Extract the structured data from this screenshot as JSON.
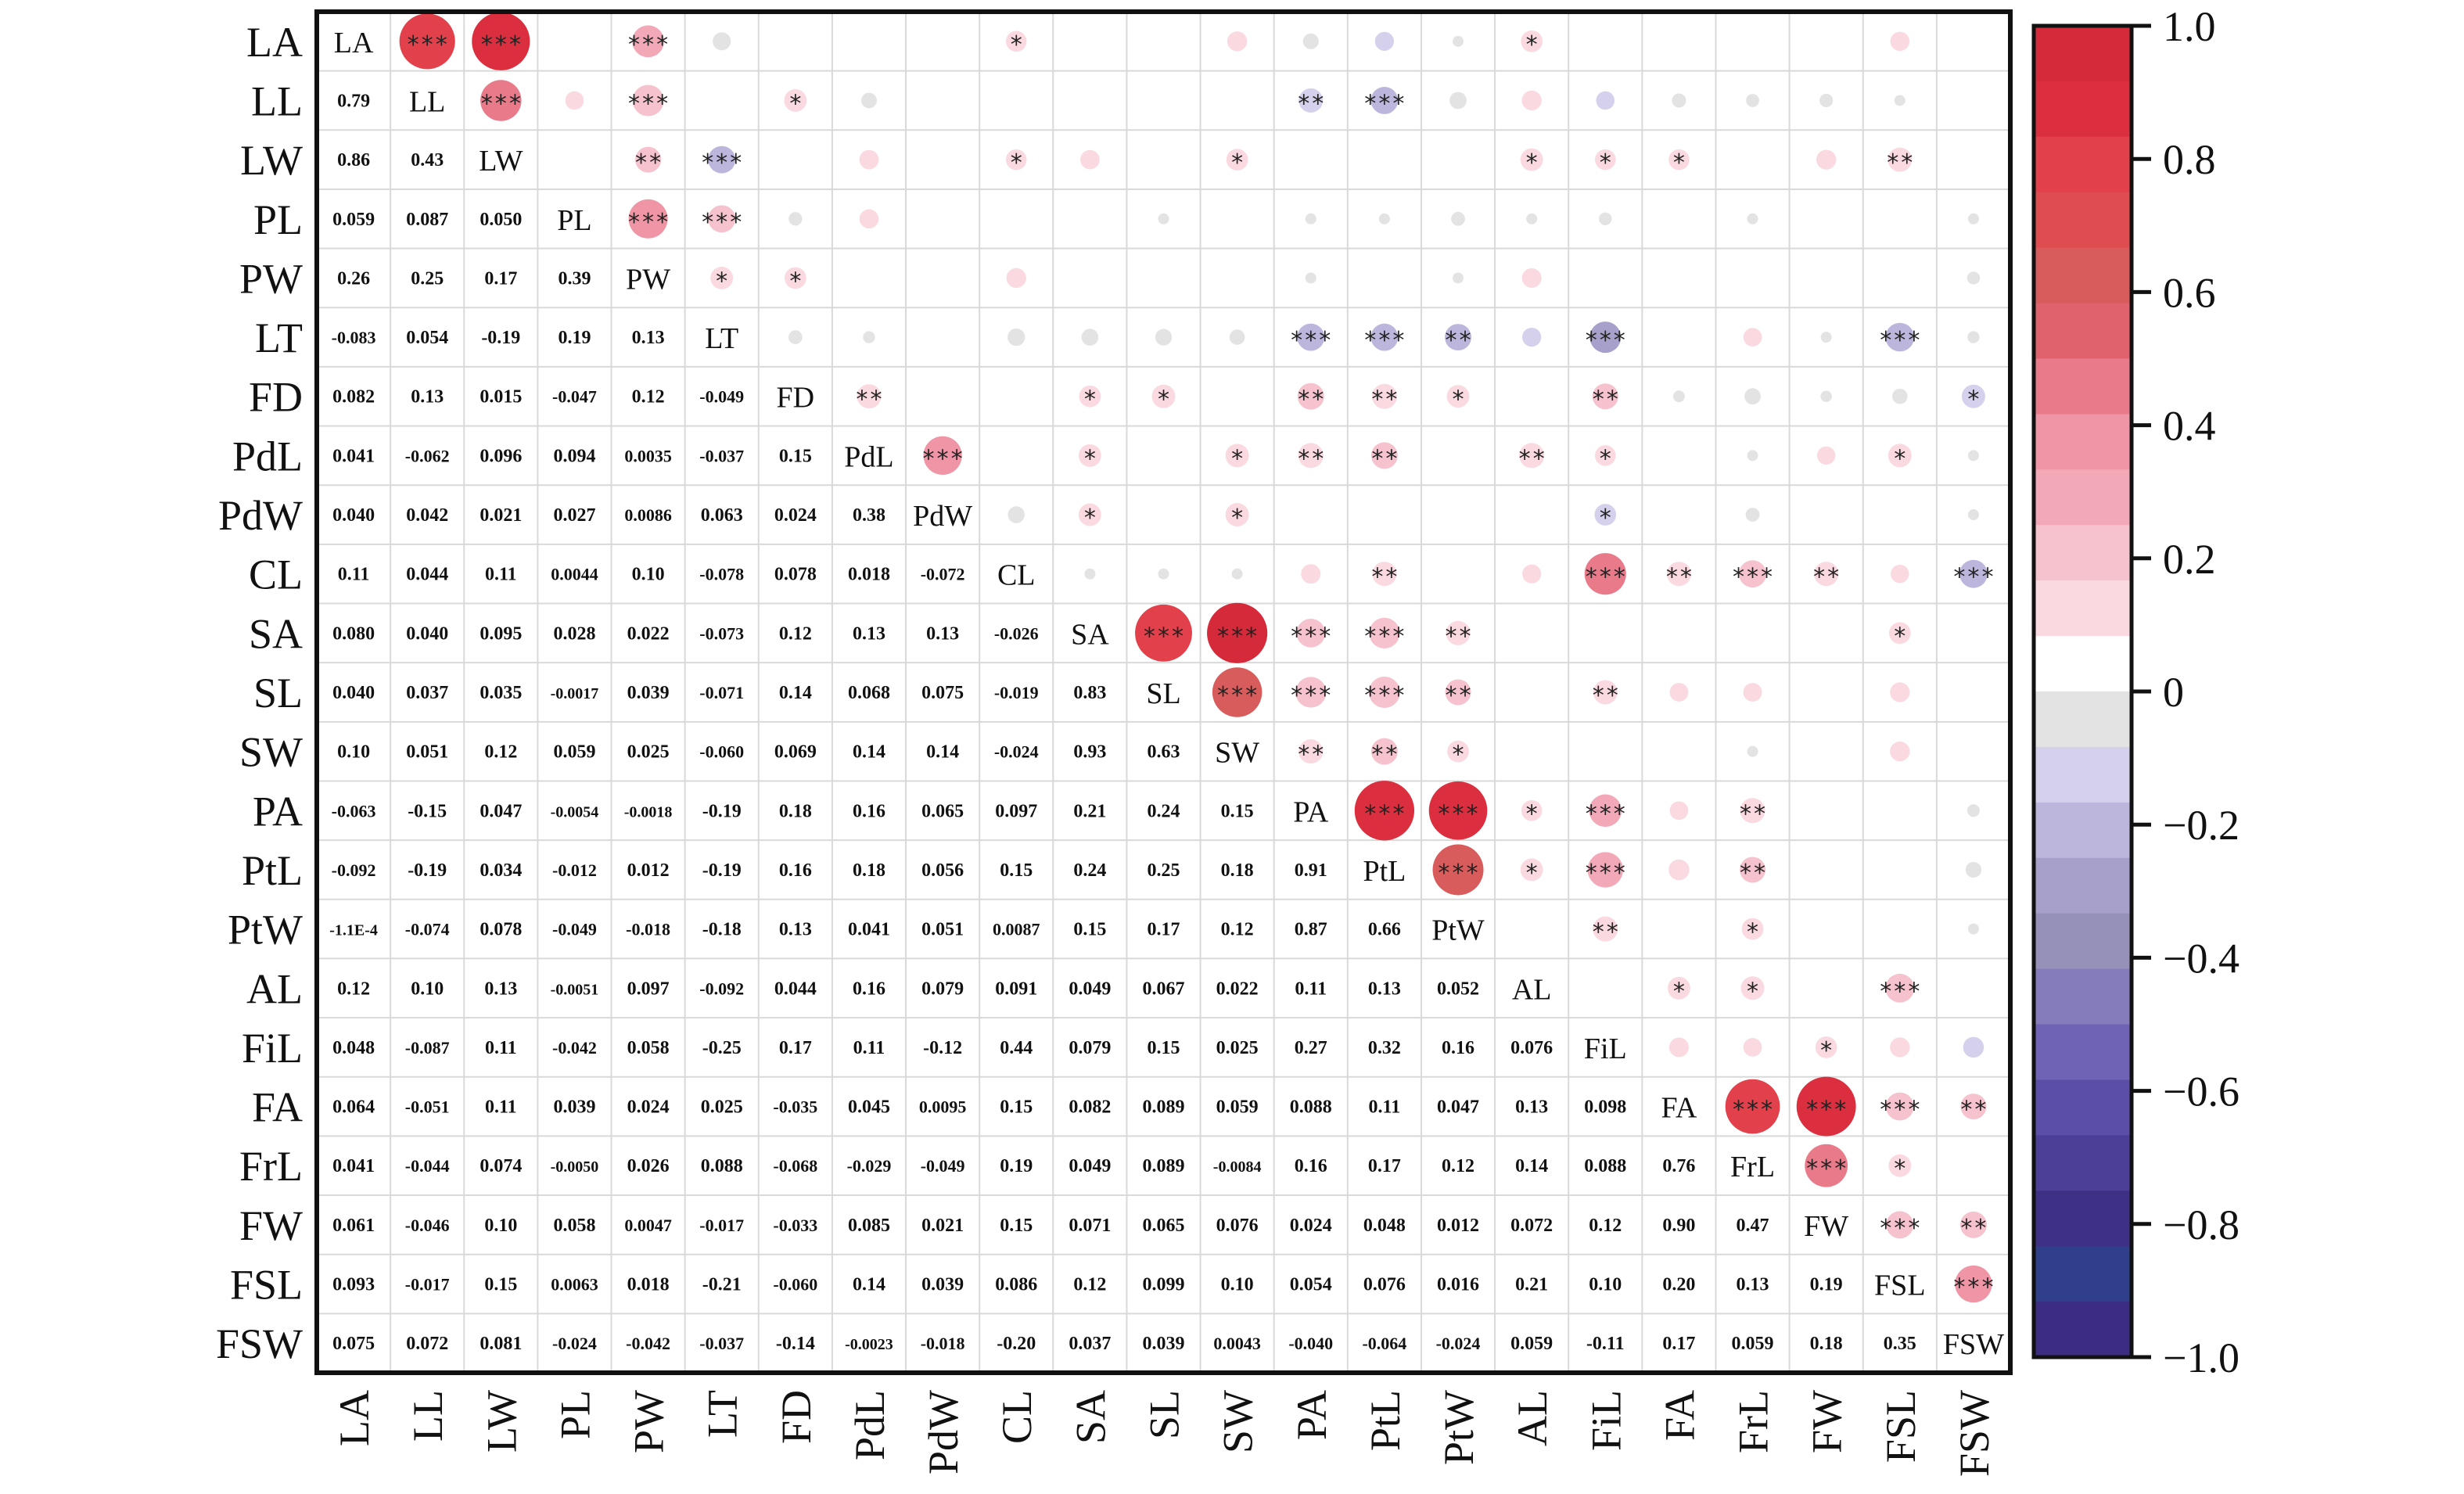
{
  "chart_data": {
    "type": "heatmap",
    "variables": [
      "LA",
      "LL",
      "LW",
      "PL",
      "PW",
      "LT",
      "FD",
      "PdL",
      "PdW",
      "CL",
      "SA",
      "SL",
      "SW",
      "PA",
      "PtL",
      "PtW",
      "AL",
      "FiL",
      "FA",
      "FrL",
      "FW",
      "FSL",
      "FSW"
    ],
    "lower_triangle_values": [
      [],
      [
        "0.79"
      ],
      [
        "0.86",
        "0.43"
      ],
      [
        "0.059",
        "0.087",
        "0.050"
      ],
      [
        "0.26",
        "0.25",
        "0.17",
        "0.39"
      ],
      [
        "-0.083",
        "0.054",
        "-0.19",
        "0.19",
        "0.13"
      ],
      [
        "0.082",
        "0.13",
        "0.015",
        "-0.047",
        "0.12",
        "-0.049"
      ],
      [
        "0.041",
        "-0.062",
        "0.096",
        "0.094",
        "0.0035",
        "-0.037",
        "0.15"
      ],
      [
        "0.040",
        "0.042",
        "0.021",
        "0.027",
        "0.0086",
        "0.063",
        "0.024",
        "0.38"
      ],
      [
        "0.11",
        "0.044",
        "0.11",
        "0.0044",
        "0.10",
        "-0.078",
        "0.078",
        "0.018",
        "-0.072"
      ],
      [
        "0.080",
        "0.040",
        "0.095",
        "0.028",
        "0.022",
        "-0.073",
        "0.12",
        "0.13",
        "0.13",
        "-0.026"
      ],
      [
        "0.040",
        "0.037",
        "0.035",
        "-0.0017",
        "0.039",
        "-0.071",
        "0.14",
        "0.068",
        "0.075",
        "-0.019",
        "0.83"
      ],
      [
        "0.10",
        "0.051",
        "0.12",
        "0.059",
        "0.025",
        "-0.060",
        "0.069",
        "0.14",
        "0.14",
        "-0.024",
        "0.93",
        "0.63"
      ],
      [
        "-0.063",
        "-0.15",
        "0.047",
        "-0.0054",
        "-0.0018",
        "-0.19",
        "0.18",
        "0.16",
        "0.065",
        "0.097",
        "0.21",
        "0.24",
        "0.15"
      ],
      [
        "-0.092",
        "-0.19",
        "0.034",
        "-0.012",
        "0.012",
        "-0.19",
        "0.16",
        "0.18",
        "0.056",
        "0.15",
        "0.24",
        "0.25",
        "0.18",
        "0.91"
      ],
      [
        "-1.1E-4",
        "-0.074",
        "0.078",
        "-0.049",
        "-0.018",
        "-0.18",
        "0.13",
        "0.041",
        "0.051",
        "0.0087",
        "0.15",
        "0.17",
        "0.12",
        "0.87",
        "0.66"
      ],
      [
        "0.12",
        "0.10",
        "0.13",
        "-0.0051",
        "0.097",
        "-0.092",
        "0.044",
        "0.16",
        "0.079",
        "0.091",
        "0.049",
        "0.067",
        "0.022",
        "0.11",
        "0.13",
        "0.052"
      ],
      [
        "0.048",
        "-0.087",
        "0.11",
        "-0.042",
        "0.058",
        "-0.25",
        "0.17",
        "0.11",
        "-0.12",
        "0.44",
        "0.079",
        "0.15",
        "0.025",
        "0.27",
        "0.32",
        "0.16",
        "0.076"
      ],
      [
        "0.064",
        "-0.051",
        "0.11",
        "0.039",
        "0.024",
        "0.025",
        "-0.035",
        "0.045",
        "0.0095",
        "0.15",
        "0.082",
        "0.089",
        "0.059",
        "0.088",
        "0.11",
        "0.047",
        "0.13",
        "0.098"
      ],
      [
        "0.041",
        "-0.044",
        "0.074",
        "-0.0050",
        "0.026",
        "0.088",
        "-0.068",
        "-0.029",
        "-0.049",
        "0.19",
        "0.049",
        "0.089",
        "-0.0084",
        "0.16",
        "0.17",
        "0.12",
        "0.14",
        "0.088",
        "0.76"
      ],
      [
        "0.061",
        "-0.046",
        "0.10",
        "0.058",
        "0.0047",
        "-0.017",
        "-0.033",
        "0.085",
        "0.021",
        "0.15",
        "0.071",
        "0.065",
        "0.076",
        "0.024",
        "0.048",
        "0.012",
        "0.072",
        "0.12",
        "0.90",
        "0.47"
      ],
      [
        "0.093",
        "-0.017",
        "0.15",
        "0.0063",
        "0.018",
        "-0.21",
        "-0.060",
        "0.14",
        "0.039",
        "0.086",
        "0.12",
        "0.099",
        "0.10",
        "0.054",
        "0.076",
        "0.016",
        "0.21",
        "0.10",
        "0.20",
        "0.13",
        "0.19"
      ],
      [
        "0.075",
        "0.072",
        "0.081",
        "-0.024",
        "-0.042",
        "-0.037",
        "-0.14",
        "-0.0023",
        "-0.018",
        "-0.20",
        "0.037",
        "0.039",
        "0.0043",
        "-0.040",
        "-0.064",
        "-0.024",
        "0.059",
        "-0.11",
        "0.17",
        "0.059",
        "0.18",
        "0.35"
      ]
    ],
    "significance": {
      "0,1": "***",
      "0,2": "***",
      "0,4": "***",
      "0,9": "*",
      "0,16": "*",
      "1,2": "***",
      "1,4": "***",
      "1,6": "*",
      "1,13": "**",
      "1,14": "***",
      "2,4": "**",
      "2,5": "***",
      "2,9": "*",
      "2,12": "*",
      "2,16": "*",
      "2,17": "*",
      "2,18": "*",
      "2,21": "**",
      "3,4": "***",
      "3,5": "***",
      "4,5": "*",
      "4,6": "*",
      "5,13": "***",
      "5,14": "***",
      "5,15": "**",
      "5,17": "***",
      "5,21": "***",
      "6,7": "**",
      "6,10": "*",
      "6,11": "*",
      "6,13": "**",
      "6,14": "**",
      "6,15": "*",
      "6,17": "**",
      "6,22": "*",
      "7,8": "***",
      "7,10": "*",
      "7,12": "*",
      "7,13": "**",
      "7,14": "**",
      "7,16": "**",
      "7,17": "*",
      "7,21": "*",
      "8,10": "*",
      "8,12": "*",
      "8,17": "*",
      "9,14": "**",
      "9,17": "***",
      "9,18": "**",
      "9,19": "***",
      "9,20": "**",
      "9,22": "***",
      "10,11": "***",
      "10,12": "***",
      "10,13": "***",
      "10,14": "***",
      "10,15": "**",
      "10,21": "*",
      "11,12": "***",
      "11,13": "***",
      "11,14": "***",
      "11,15": "**",
      "11,17": "**",
      "12,13": "**",
      "12,14": "**",
      "12,15": "*",
      "13,14": "***",
      "13,15": "***",
      "13,16": "*",
      "13,17": "***",
      "13,19": "**",
      "14,15": "***",
      "14,16": "*",
      "14,17": "***",
      "14,19": "**",
      "15,17": "**",
      "15,19": "*",
      "16,18": "*",
      "16,19": "*",
      "16,21": "***",
      "17,20": "*",
      "18,19": "***",
      "18,20": "***",
      "18,21": "***",
      "18,22": "**",
      "19,20": "***",
      "19,21": "*",
      "20,21": "***",
      "20,22": "**",
      "21,22": "***"
    },
    "colorbar": {
      "range": [
        -1.0,
        1.0
      ],
      "ticks": [
        "1.0",
        "0.8",
        "0.6",
        "0.4",
        "0.2",
        "0",
        "−0.2",
        "−0.4",
        "−0.6",
        "−0.8",
        "−1.0"
      ],
      "tick_values": [
        1.0,
        0.8,
        0.6,
        0.4,
        0.2,
        0,
        -0.2,
        -0.4,
        -0.6,
        -0.8,
        -1.0
      ],
      "colors_top_to_bottom": [
        "#d42a3a",
        "#db2f3f",
        "#e2404b",
        "#df4d50",
        "#d85c5c",
        "#e0626c",
        "#e87a8a",
        "#f095a5",
        "#f3a8b8",
        "#f5c2cd",
        "#fad9e0",
        "#ffffff",
        "#e3e3e3",
        "#d5d0ec",
        "#bdb6dc",
        "#a7a0ca",
        "#9691b9",
        "#857cbc",
        "#6e63b5",
        "#5a4ea8",
        "#4c3f97",
        "#3e3185",
        "#2f3f8a",
        "#3d2d82"
      ]
    },
    "grid": true
  }
}
